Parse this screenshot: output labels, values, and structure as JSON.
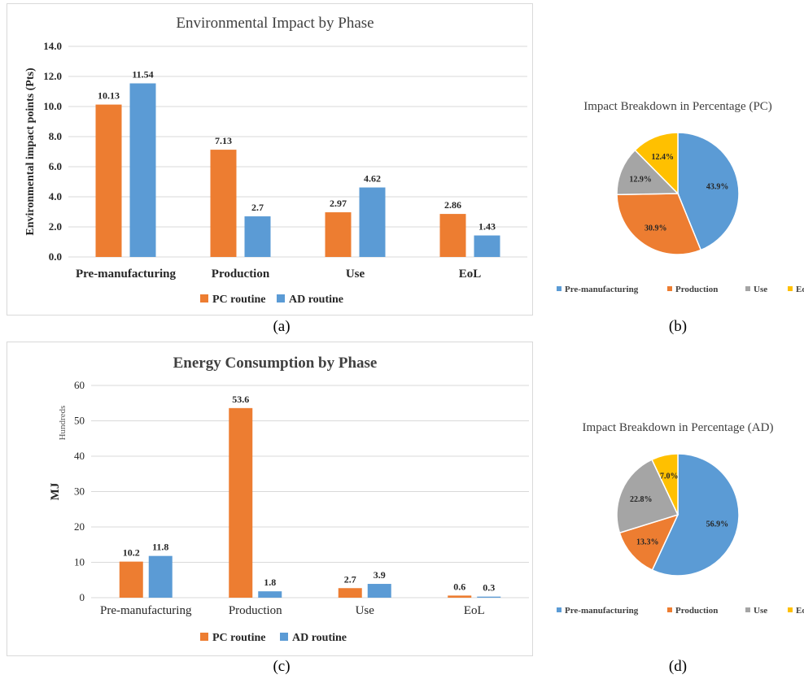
{
  "colors": {
    "pc": "#ED7D31",
    "ad": "#5B9BD5",
    "use": "#A5A5A5",
    "eol": "#FFC000",
    "grid": "#d9d9d9",
    "text": "#262626"
  },
  "chart_data": [
    {
      "id": "a",
      "type": "bar",
      "title": "Environmental  Impact by Phase",
      "ylabel": "Environmental impact points (Pts)",
      "categories": [
        "Pre-manufacturing",
        "Production",
        "Use",
        "EoL"
      ],
      "series": [
        {
          "name": "PC routine",
          "values": [
            10.13,
            7.13,
            2.97,
            2.86
          ],
          "labels": [
            "10.13",
            "7.13",
            "2.97",
            "2.86"
          ]
        },
        {
          "name": "AD routine",
          "values": [
            11.54,
            2.7,
            4.62,
            1.43
          ],
          "labels": [
            "11.54",
            "2.7",
            "4.62",
            "1.43"
          ]
        }
      ],
      "ylim": [
        0,
        14
      ],
      "yticks": [
        "0.0",
        "2.0",
        "4.0",
        "6.0",
        "8.0",
        "10.0",
        "12.0",
        "14.0"
      ],
      "grid": true,
      "legend": "bottom",
      "caption": "(a)"
    },
    {
      "id": "b",
      "type": "pie",
      "title": "Impact Breakdown in Percentage (PC)",
      "labels": [
        "Pre-manufacturing",
        "Production",
        "Use",
        "EoL"
      ],
      "values": [
        43.9,
        30.9,
        12.9,
        12.4
      ],
      "value_labels": [
        "43.9%",
        "30.9%",
        "12.9%",
        "12.4%"
      ],
      "legend": "bottom",
      "caption": "(b)"
    },
    {
      "id": "c",
      "type": "bar",
      "title": "Energy Consumption by Phase",
      "ylabel": "MJ",
      "unit_label": "Hundreds",
      "categories": [
        "Pre-manufacturing",
        "Production",
        "Use",
        "EoL"
      ],
      "series": [
        {
          "name": "PC routine",
          "values": [
            10.2,
            53.6,
            2.7,
            0.6
          ],
          "labels": [
            "10.2",
            "53.6",
            "2.7",
            "0.6"
          ]
        },
        {
          "name": "AD routine",
          "values": [
            11.8,
            1.8,
            3.9,
            0.3
          ],
          "labels": [
            "11.8",
            "1.8",
            "3.9",
            "0.3"
          ]
        }
      ],
      "ylim": [
        0,
        60
      ],
      "yticks": [
        "0",
        "10",
        "20",
        "30",
        "40",
        "50",
        "60"
      ],
      "grid": true,
      "legend": "bottom",
      "caption": "(c)"
    },
    {
      "id": "d",
      "type": "pie",
      "title": "Impact Breakdown in Percentage (AD)",
      "labels": [
        "Pre-manufacturing",
        "Production",
        "Use",
        "EoL"
      ],
      "values": [
        56.9,
        13.3,
        22.8,
        7.0
      ],
      "value_labels": [
        "56.9%",
        "13.3%",
        "22.8%",
        "7.0%"
      ],
      "legend": "bottom",
      "caption": "(d)"
    }
  ]
}
